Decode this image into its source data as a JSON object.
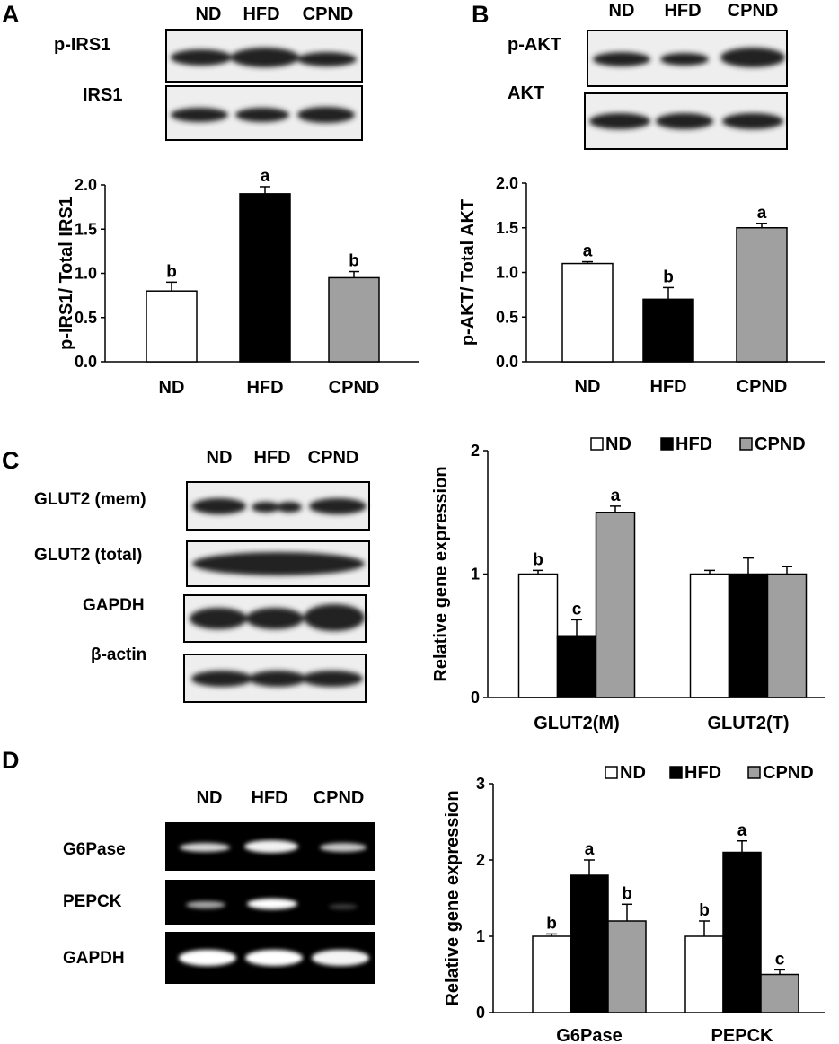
{
  "panels": {
    "A": {
      "label": "A",
      "blot": {
        "lanes": [
          "ND",
          "HFD",
          "CPND"
        ],
        "rows": [
          "p-IRS1",
          "IRS1"
        ]
      },
      "chart_data": {
        "type": "bar",
        "categories": [
          "ND",
          "HFD",
          "CPND"
        ],
        "values": [
          0.8,
          1.9,
          0.95
        ],
        "errors": [
          0.1,
          0.08,
          0.07
        ],
        "sig": [
          "b",
          "a",
          "b"
        ],
        "colors": [
          "#ffffff",
          "#000000",
          "#a0a0a0"
        ],
        "ylabel": "p-IRS1/ Total IRS1",
        "ylim": [
          0,
          2.0
        ],
        "yticks": [
          "0.0",
          "0.5",
          "1.0",
          "1.5",
          "2.0"
        ],
        "grid": false
      }
    },
    "B": {
      "label": "B",
      "blot": {
        "lanes": [
          "ND",
          "HFD",
          "CPND"
        ],
        "rows": [
          "p-AKT",
          "AKT"
        ]
      },
      "chart_data": {
        "type": "bar",
        "categories": [
          "ND",
          "HFD",
          "CPND"
        ],
        "values": [
          1.1,
          0.7,
          1.5
        ],
        "errors": [
          0.02,
          0.13,
          0.05
        ],
        "sig": [
          "a",
          "b",
          "a"
        ],
        "colors": [
          "#ffffff",
          "#000000",
          "#a0a0a0"
        ],
        "ylabel": "p-AKT/ Total AKT",
        "ylim": [
          0,
          2.0
        ],
        "yticks": [
          "0.0",
          "0.5",
          "1.0",
          "1.5",
          "2.0"
        ],
        "grid": false
      }
    },
    "C": {
      "label": "C",
      "blot": {
        "lanes": [
          "ND",
          "HFD",
          "CPND"
        ],
        "rows": [
          "GLUT2 (mem)",
          "GLUT2 (total)",
          "GAPDH",
          "β-actin"
        ]
      },
      "chart_data": {
        "type": "bar",
        "categories": [
          "GLUT2(M)",
          "GLUT2(T)"
        ],
        "series": [
          {
            "name": "ND",
            "values": [
              1.0,
              1.0
            ],
            "errors": [
              0.03,
              0.03
            ],
            "sig": [
              "b",
              ""
            ],
            "color": "#ffffff"
          },
          {
            "name": "HFD",
            "values": [
              0.5,
              1.0
            ],
            "errors": [
              0.13,
              0.13
            ],
            "sig": [
              "c",
              ""
            ],
            "color": "#000000"
          },
          {
            "name": "CPND",
            "values": [
              1.5,
              1.0
            ],
            "errors": [
              0.05,
              0.06
            ],
            "sig": [
              "a",
              ""
            ],
            "color": "#a0a0a0"
          }
        ],
        "ylabel": "Relative gene expression",
        "ylim": [
          0,
          2
        ],
        "yticks": [
          "0",
          "1",
          "2"
        ],
        "legend": "top",
        "grid": false
      }
    },
    "D": {
      "label": "D",
      "gel": {
        "lanes": [
          "ND",
          "HFD",
          "CPND"
        ],
        "rows": [
          "G6Pase",
          "PEPCK",
          "GAPDH"
        ]
      },
      "chart_data": {
        "type": "bar",
        "categories": [
          "G6Pase",
          "PEPCK"
        ],
        "series": [
          {
            "name": "ND",
            "values": [
              1.0,
              1.0
            ],
            "errors": [
              0.03,
              0.2
            ],
            "sig": [
              "b",
              "b"
            ],
            "color": "#ffffff"
          },
          {
            "name": "HFD",
            "values": [
              1.8,
              2.1
            ],
            "errors": [
              0.2,
              0.15
            ],
            "sig": [
              "a",
              "a"
            ],
            "color": "#000000"
          },
          {
            "name": "CPND",
            "values": [
              1.2,
              0.5
            ],
            "errors": [
              0.22,
              0.06
            ],
            "sig": [
              "b",
              "c"
            ],
            "color": "#a0a0a0"
          }
        ],
        "ylabel": "Relative gene expression",
        "ylim": [
          0,
          3
        ],
        "yticks": [
          "0",
          "1",
          "2",
          "3"
        ],
        "legend": "top",
        "grid": false
      }
    }
  }
}
